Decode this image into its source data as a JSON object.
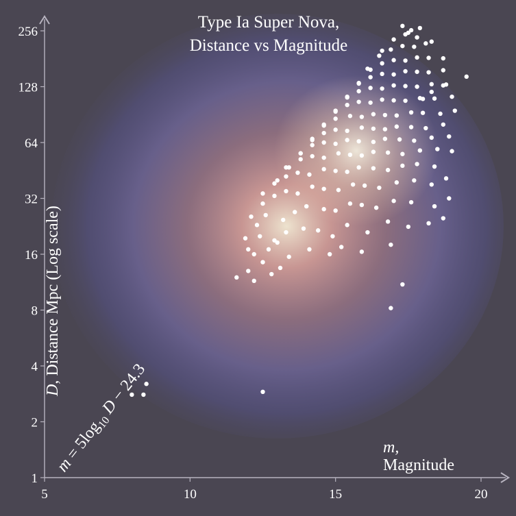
{
  "chart_data": {
    "type": "scatter",
    "title_lines": [
      "Type Ia Super Nova,",
      "Distance vs Magnitude"
    ],
    "xlabel_symbol": "m,",
    "xlabel": "Magnitude",
    "ylabel_symbol": "D",
    "ylabel": ", Distance Mpc (Log scale)",
    "xlim": [
      5,
      21
    ],
    "ylim": [
      1,
      300
    ],
    "y_scale": "log2",
    "x_ticks": [
      "5",
      "10",
      "15",
      "20"
    ],
    "y_ticks": [
      "1",
      "2",
      "4",
      "8",
      "16",
      "32",
      "64",
      "128",
      "256"
    ],
    "fit_line": {
      "equation_parts": [
        "m",
        " = 5log",
        "10",
        " D",
        " − 24.3"
      ],
      "slope": 5,
      "intercept": -24.3,
      "color": "#e81e1e",
      "x_range": [
        5.7,
        17.8
      ]
    },
    "point_color": "#ffffff",
    "series": [
      {
        "x": [
          8.0,
          8.4,
          8.5,
          12.5,
          16.9,
          17.3,
          12.2,
          12.0,
          12.5,
          12.8,
          13.1,
          12.2,
          12.7,
          13.4,
          13.0,
          14.1,
          14.8,
          15.2,
          15.9,
          16.9,
          11.6,
          12.0,
          12.4,
          12.9,
          13.3,
          13.9,
          14.4,
          14.9,
          15.4,
          16.1,
          16.8,
          17.5,
          18.2,
          18.7,
          11.9,
          12.3,
          12.6,
          13.2,
          13.6,
          14.0,
          14.6,
          15.0,
          15.5,
          15.9,
          16.4,
          17.0,
          17.6,
          18.4,
          18.9,
          12.1,
          12.5,
          12.9,
          13.3,
          13.7,
          14.2,
          14.6,
          15.1,
          15.6,
          16.0,
          16.5,
          17.1,
          17.7,
          18.3,
          18.8,
          12.5,
          12.9,
          13.3,
          13.7,
          14.1,
          14.6,
          15.0,
          15.4,
          15.8,
          16.3,
          16.8,
          17.3,
          17.8,
          18.4,
          13.0,
          13.4,
          13.8,
          14.2,
          14.6,
          15.1,
          15.5,
          15.9,
          16.3,
          16.8,
          17.3,
          17.9,
          18.5,
          19.0,
          13.3,
          13.8,
          14.2,
          14.6,
          15.0,
          15.4,
          15.8,
          16.3,
          16.7,
          17.2,
          17.7,
          18.3,
          18.9,
          13.8,
          14.2,
          14.6,
          15.0,
          15.4,
          15.9,
          16.3,
          16.7,
          17.1,
          17.6,
          18.1,
          18.7,
          14.2,
          14.6,
          15.0,
          15.5,
          15.9,
          16.3,
          16.7,
          17.1,
          17.6,
          18.0,
          18.6,
          19.1,
          14.6,
          15.0,
          15.4,
          15.8,
          16.2,
          16.6,
          17.0,
          17.4,
          17.9,
          18.4,
          19.0,
          15.0,
          15.4,
          15.8,
          16.2,
          16.6,
          17.0,
          17.4,
          17.8,
          18.3,
          18.8,
          15.4,
          15.8,
          16.2,
          16.6,
          17.0,
          17.4,
          17.8,
          18.2,
          18.7,
          15.8,
          16.2,
          16.6,
          17.0,
          17.4,
          17.8,
          18.2,
          18.7,
          16.1,
          16.5,
          16.9,
          17.3,
          17.7,
          18.1,
          16.6,
          17.0,
          17.4,
          17.8,
          18.3,
          17.5,
          17.9,
          17.3,
          17.6,
          19.5,
          18.7,
          18.3,
          18.0
        ],
        "y": [
          2.8,
          2.8,
          3.2,
          2.9,
          8.2,
          11.0,
          11.5,
          13.0,
          14.5,
          12.5,
          13.5,
          16.0,
          17.0,
          15.5,
          18.5,
          17.0,
          16.0,
          17.5,
          16.5,
          18.0,
          12.0,
          17.0,
          20.0,
          19.0,
          21.0,
          22.0,
          21.5,
          20.0,
          23.0,
          21.0,
          24.0,
          22.5,
          23.5,
          25.0,
          19.5,
          23.0,
          26.0,
          24.5,
          27.0,
          29.0,
          28.0,
          27.5,
          30.0,
          29.5,
          28.5,
          31.0,
          30.5,
          29.0,
          32.0,
          25.5,
          30.0,
          33.0,
          35.0,
          34.0,
          37.0,
          36.0,
          35.5,
          38.0,
          37.5,
          36.5,
          39.0,
          40.0,
          38.0,
          41.0,
          34.0,
          38.5,
          42.0,
          44.0,
          43.0,
          46.0,
          45.0,
          44.5,
          47.0,
          46.5,
          45.5,
          48.0,
          49.0,
          47.5,
          40.0,
          47.0,
          52.0,
          54.0,
          53.0,
          56.0,
          55.0,
          54.5,
          57.0,
          56.5,
          55.5,
          58.0,
          59.0,
          57.5,
          47.0,
          56.0,
          62.0,
          64.0,
          63.0,
          66.0,
          65.0,
          64.5,
          67.0,
          66.5,
          65.5,
          68.0,
          69.0,
          56.0,
          66.0,
          72.0,
          75.0,
          74.0,
          77.0,
          76.0,
          75.5,
          78.0,
          77.5,
          76.5,
          80.0,
          67.0,
          79.0,
          86.0,
          89.0,
          88.0,
          91.0,
          90.0,
          89.5,
          93.0,
          92.5,
          91.5,
          95.0,
          80.0,
          94.0,
          102.0,
          106.0,
          105.0,
          109.0,
          108.0,
          107.5,
          111.0,
          110.5,
          113.0,
          95.0,
          112.0,
          121.0,
          126.0,
          125.0,
          130.0,
          129.0,
          128.0,
          132.0,
          131.5,
          113.0,
          133.0,
          144.0,
          150.0,
          149.0,
          155.0,
          154.0,
          153.0,
          157.0,
          134.0,
          158.0,
          171.0,
          178.0,
          177.0,
          184.0,
          183.0,
          182.0,
          160.0,
          188.0,
          203.0,
          212.0,
          210.0,
          219.0,
          200.0,
          230.0,
          245.0,
          236.0,
          224.0,
          250.0,
          265.0,
          272.0,
          258.0,
          145.0,
          130.0,
          120.0,
          110.0
        ]
      }
    ]
  }
}
